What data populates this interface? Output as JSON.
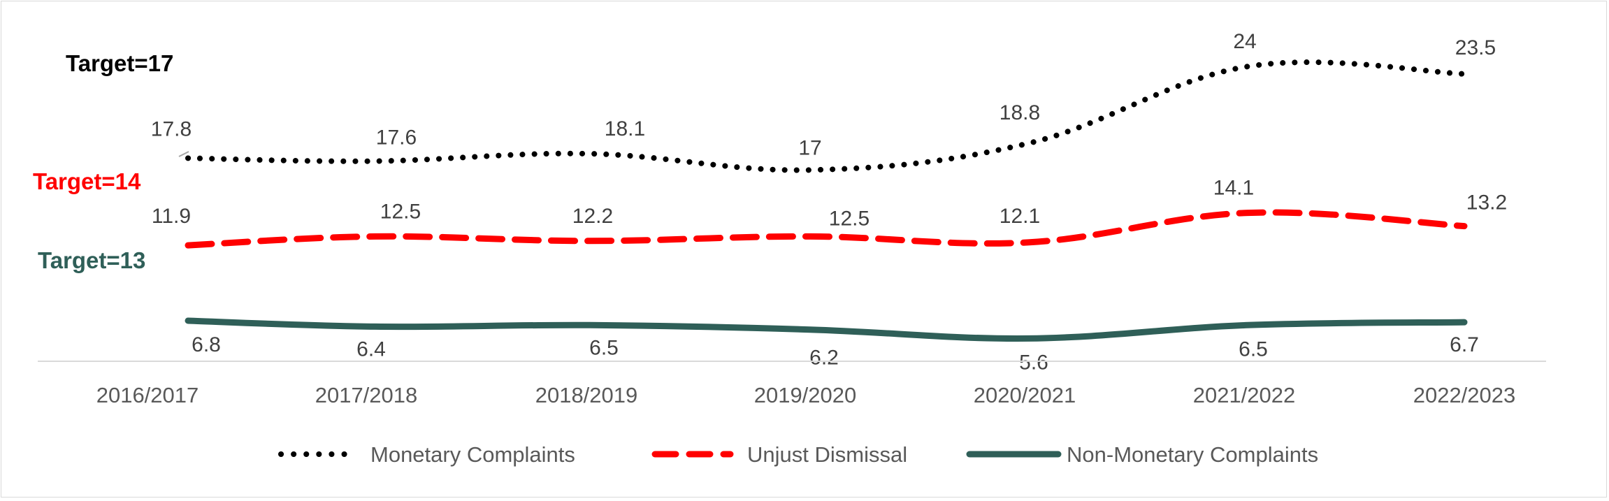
{
  "chart_data": {
    "type": "line",
    "title": "",
    "xlabel": "",
    "ylabel": "",
    "categories": [
      "2016/2017",
      "2017/2018",
      "2018/2019",
      "2019/2020",
      "2020/2021",
      "2021/2022",
      "2022/2023"
    ],
    "series": [
      {
        "name": "Monetary Complaints",
        "values": [
          17.8,
          17.6,
          18.1,
          17,
          18.8,
          24,
          23.5
        ],
        "color": "#000000",
        "style": "dotted"
      },
      {
        "name": "Unjust Dismissal",
        "values": [
          11.9,
          12.5,
          12.2,
          12.5,
          12.1,
          14.1,
          13.2
        ],
        "color": "#ff0000",
        "style": "dashed"
      },
      {
        "name": "Non-Monetary Complaints",
        "values": [
          6.8,
          6.4,
          6.5,
          6.2,
          5.6,
          6.5,
          6.7
        ],
        "color": "#2f5f58",
        "style": "solid"
      }
    ],
    "annotations": [
      {
        "text": "Target=17",
        "color": "#000000"
      },
      {
        "text": "Target=14",
        "color": "#ff0000"
      },
      {
        "text": "Target=13",
        "color": "#2f5f58"
      }
    ],
    "legend_position": "bottom",
    "grid": false
  }
}
